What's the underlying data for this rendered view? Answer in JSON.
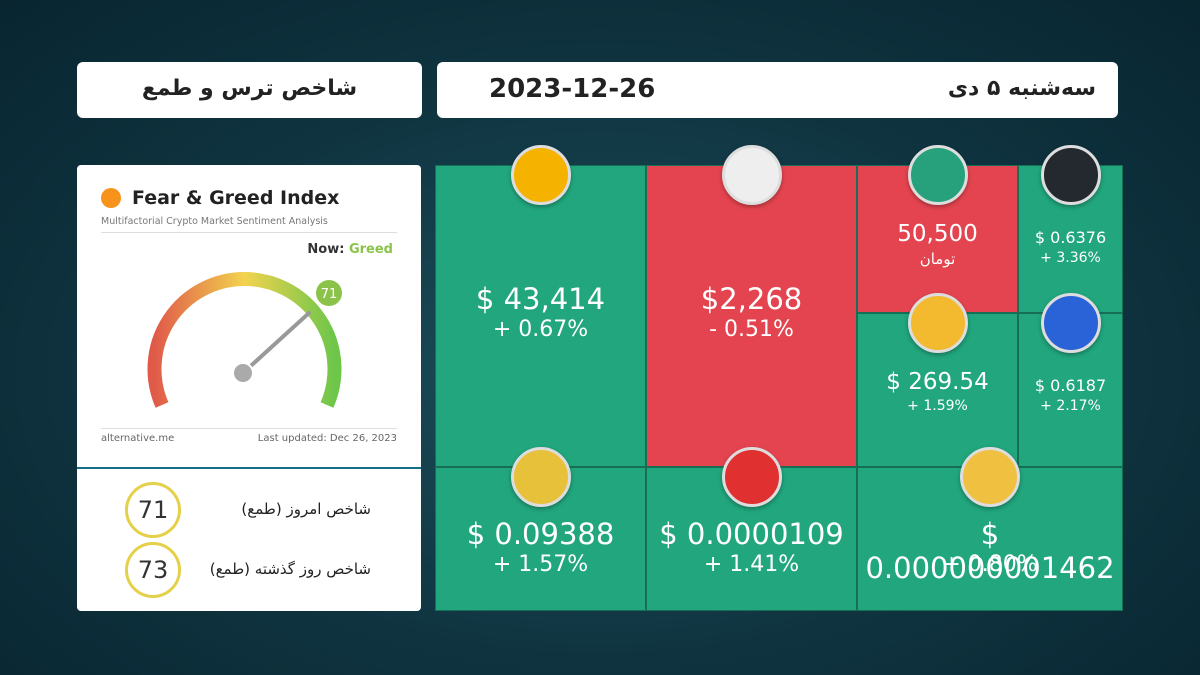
{
  "header": {
    "title": "شاخص ترس و طمع",
    "date": "2023-12-26",
    "weekday_date": "سه‌شنبه ۵ دی"
  },
  "gauge_card": {
    "title": "Fear & Greed Index",
    "subtitle": "Multifactorial Crypto Market Sentiment Analysis",
    "now_label": "Now:",
    "now_value": "Greed",
    "value": "71",
    "source": "alternative.me",
    "updated": "Last updated: Dec 26, 2023"
  },
  "stats": [
    {
      "value": "71",
      "label": "شاخص امروز (طمع)"
    },
    {
      "value": "73",
      "label": "شاخص روز گذشته (طمع)"
    }
  ],
  "tiles": [
    {
      "coin": "bitcoin",
      "price": "$ 43,414",
      "change": "+ 0.67%",
      "color": "#21a67d"
    },
    {
      "coin": "ethereum",
      "price": "$2,268",
      "change": "- 0.51%",
      "color": "#e4444f"
    },
    {
      "coin": "tether",
      "price": "50,500",
      "unit": "تومان",
      "color": "#e4444f"
    },
    {
      "coin": "xrp",
      "price": "$ 0.6376",
      "change": "+ 3.36%",
      "color": "#21a67d"
    },
    {
      "coin": "bnb",
      "price": "$ 269.54",
      "change": "+ 1.59%",
      "color": "#21a67d"
    },
    {
      "coin": "cardano",
      "price": "$ 0.6187",
      "change": "+ 2.17%",
      "color": "#21a67d"
    },
    {
      "coin": "dogecoin",
      "price": "$ 0.09388",
      "change": "+ 1.57%",
      "color": "#21a67d"
    },
    {
      "coin": "shiba",
      "price": "$ 0.0000109",
      "change": "+ 1.41%",
      "color": "#21a67d"
    },
    {
      "coin": "babydoge",
      "price": "$ 0.000000001462",
      "change": "+ 0.80%",
      "color": "#21a67d"
    }
  ]
}
